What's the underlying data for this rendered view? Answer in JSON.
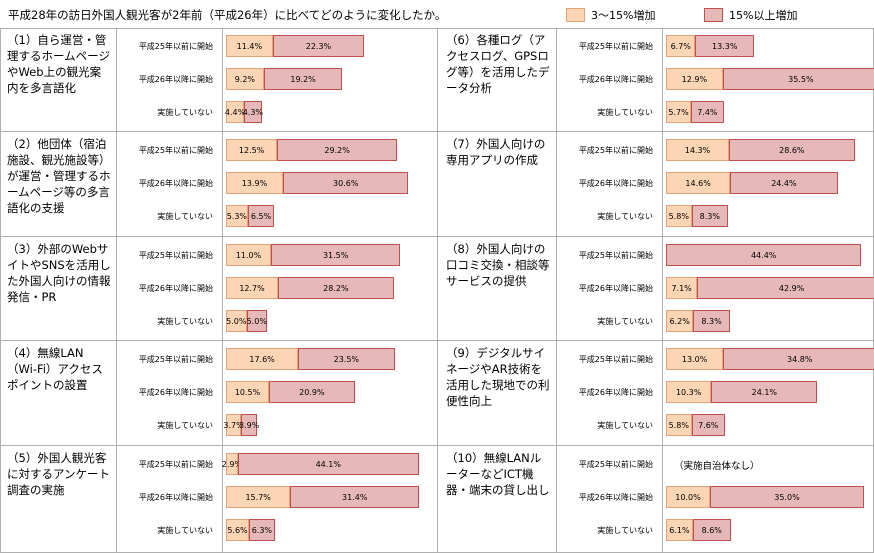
{
  "title": "平成28年の訪日外国人観光客が2年前（平成26年）に比べてどのように変化したか。",
  "legend": [
    {
      "label": "3～15%増加",
      "color": "#fcd5b5"
    },
    {
      "label": "15%以上増加",
      "color": "#e6b9b8"
    }
  ],
  "chart_data": {
    "type": "bar",
    "stacked": true,
    "orientation": "horizontal",
    "series_names": [
      "3～15%増加",
      "15%以上増加"
    ],
    "panels": [
      {
        "label": "（1）自ら運営・管理するホームページやWeb上の観光案内を多言語化",
        "rows": [
          {
            "category": "平成25年以前に開始",
            "values": [
              11.4,
              22.3
            ]
          },
          {
            "category": "平成26年以降に開始",
            "values": [
              9.2,
              19.2
            ]
          },
          {
            "category": "実施していない",
            "values": [
              4.4,
              4.3
            ]
          }
        ]
      },
      {
        "label": "（2）他団体（宿泊施設、観光施設等）が運営・管理するホームページ等の多言語化の支援",
        "rows": [
          {
            "category": "平成25年以前に開始",
            "values": [
              12.5,
              29.2
            ]
          },
          {
            "category": "平成26年以降に開始",
            "values": [
              13.9,
              30.6
            ]
          },
          {
            "category": "実施していない",
            "values": [
              5.3,
              6.5
            ]
          }
        ]
      },
      {
        "label": "（3）外部のWebサイトやSNSを活用した外国人向けの情報発信・PR",
        "rows": [
          {
            "category": "平成25年以前に開始",
            "values": [
              11.0,
              31.5
            ]
          },
          {
            "category": "平成26年以降に開始",
            "values": [
              12.7,
              28.2
            ]
          },
          {
            "category": "実施していない",
            "values": [
              5.0,
              5.0
            ]
          }
        ]
      },
      {
        "label": "（4）無線LAN（Wi-Fi）アクセスポイントの設置",
        "rows": [
          {
            "category": "平成25年以前に開始",
            "values": [
              17.6,
              23.5
            ]
          },
          {
            "category": "平成26年以降に開始",
            "values": [
              10.5,
              20.9
            ]
          },
          {
            "category": "実施していない",
            "values": [
              3.7,
              3.9
            ]
          }
        ]
      },
      {
        "label": "（5）外国人観光客に対するアンケート調査の実施",
        "rows": [
          {
            "category": "平成25年以前に開始",
            "values": [
              2.9,
              44.1
            ]
          },
          {
            "category": "平成26年以降に開始",
            "values": [
              15.7,
              31.4
            ]
          },
          {
            "category": "実施していない",
            "values": [
              5.6,
              6.3
            ]
          }
        ]
      },
      {
        "label": "（6）各種ログ（アクセスログ、GPSログ等）を活用したデータ分析",
        "rows": [
          {
            "category": "平成25年以前に開始",
            "values": [
              6.7,
              13.3
            ]
          },
          {
            "category": "平成26年以降に開始",
            "values": [
              12.9,
              35.5
            ]
          },
          {
            "category": "実施していない",
            "values": [
              5.7,
              7.4
            ]
          }
        ]
      },
      {
        "label": "（7）外国人向けの専用アプリの作成",
        "rows": [
          {
            "category": "平成25年以前に開始",
            "values": [
              14.3,
              28.6
            ]
          },
          {
            "category": "平成26年以降に開始",
            "values": [
              14.6,
              24.4
            ]
          },
          {
            "category": "実施していない",
            "values": [
              5.8,
              8.3
            ]
          }
        ]
      },
      {
        "label": "（8）外国人向けの口コミ交換・相談等サービスの提供",
        "rows": [
          {
            "category": "平成25年以前に開始",
            "values": [
              0,
              44.4
            ]
          },
          {
            "category": "平成26年以降に開始",
            "values": [
              7.1,
              42.9
            ]
          },
          {
            "category": "実施していない",
            "values": [
              6.2,
              8.3
            ]
          }
        ]
      },
      {
        "label": "（9）デジタルサイネージやAR技術を活用した現地での利便性向上",
        "rows": [
          {
            "category": "平成25年以前に開始",
            "values": [
              13.0,
              34.8
            ]
          },
          {
            "category": "平成26年以降に開始",
            "values": [
              10.3,
              24.1
            ]
          },
          {
            "category": "実施していない",
            "values": [
              5.8,
              7.6
            ]
          }
        ]
      },
      {
        "label": "（10）無線LANルーターなどICT機器・端末の貸し出し",
        "rows": [
          {
            "category": "平成25年以前に開始",
            "values": null,
            "note": "（実施自治体なし）"
          },
          {
            "category": "平成26年以降に開始",
            "values": [
              10.0,
              35.0
            ]
          },
          {
            "category": "実施していない",
            "values": [
              6.1,
              8.6
            ]
          }
        ]
      }
    ]
  }
}
